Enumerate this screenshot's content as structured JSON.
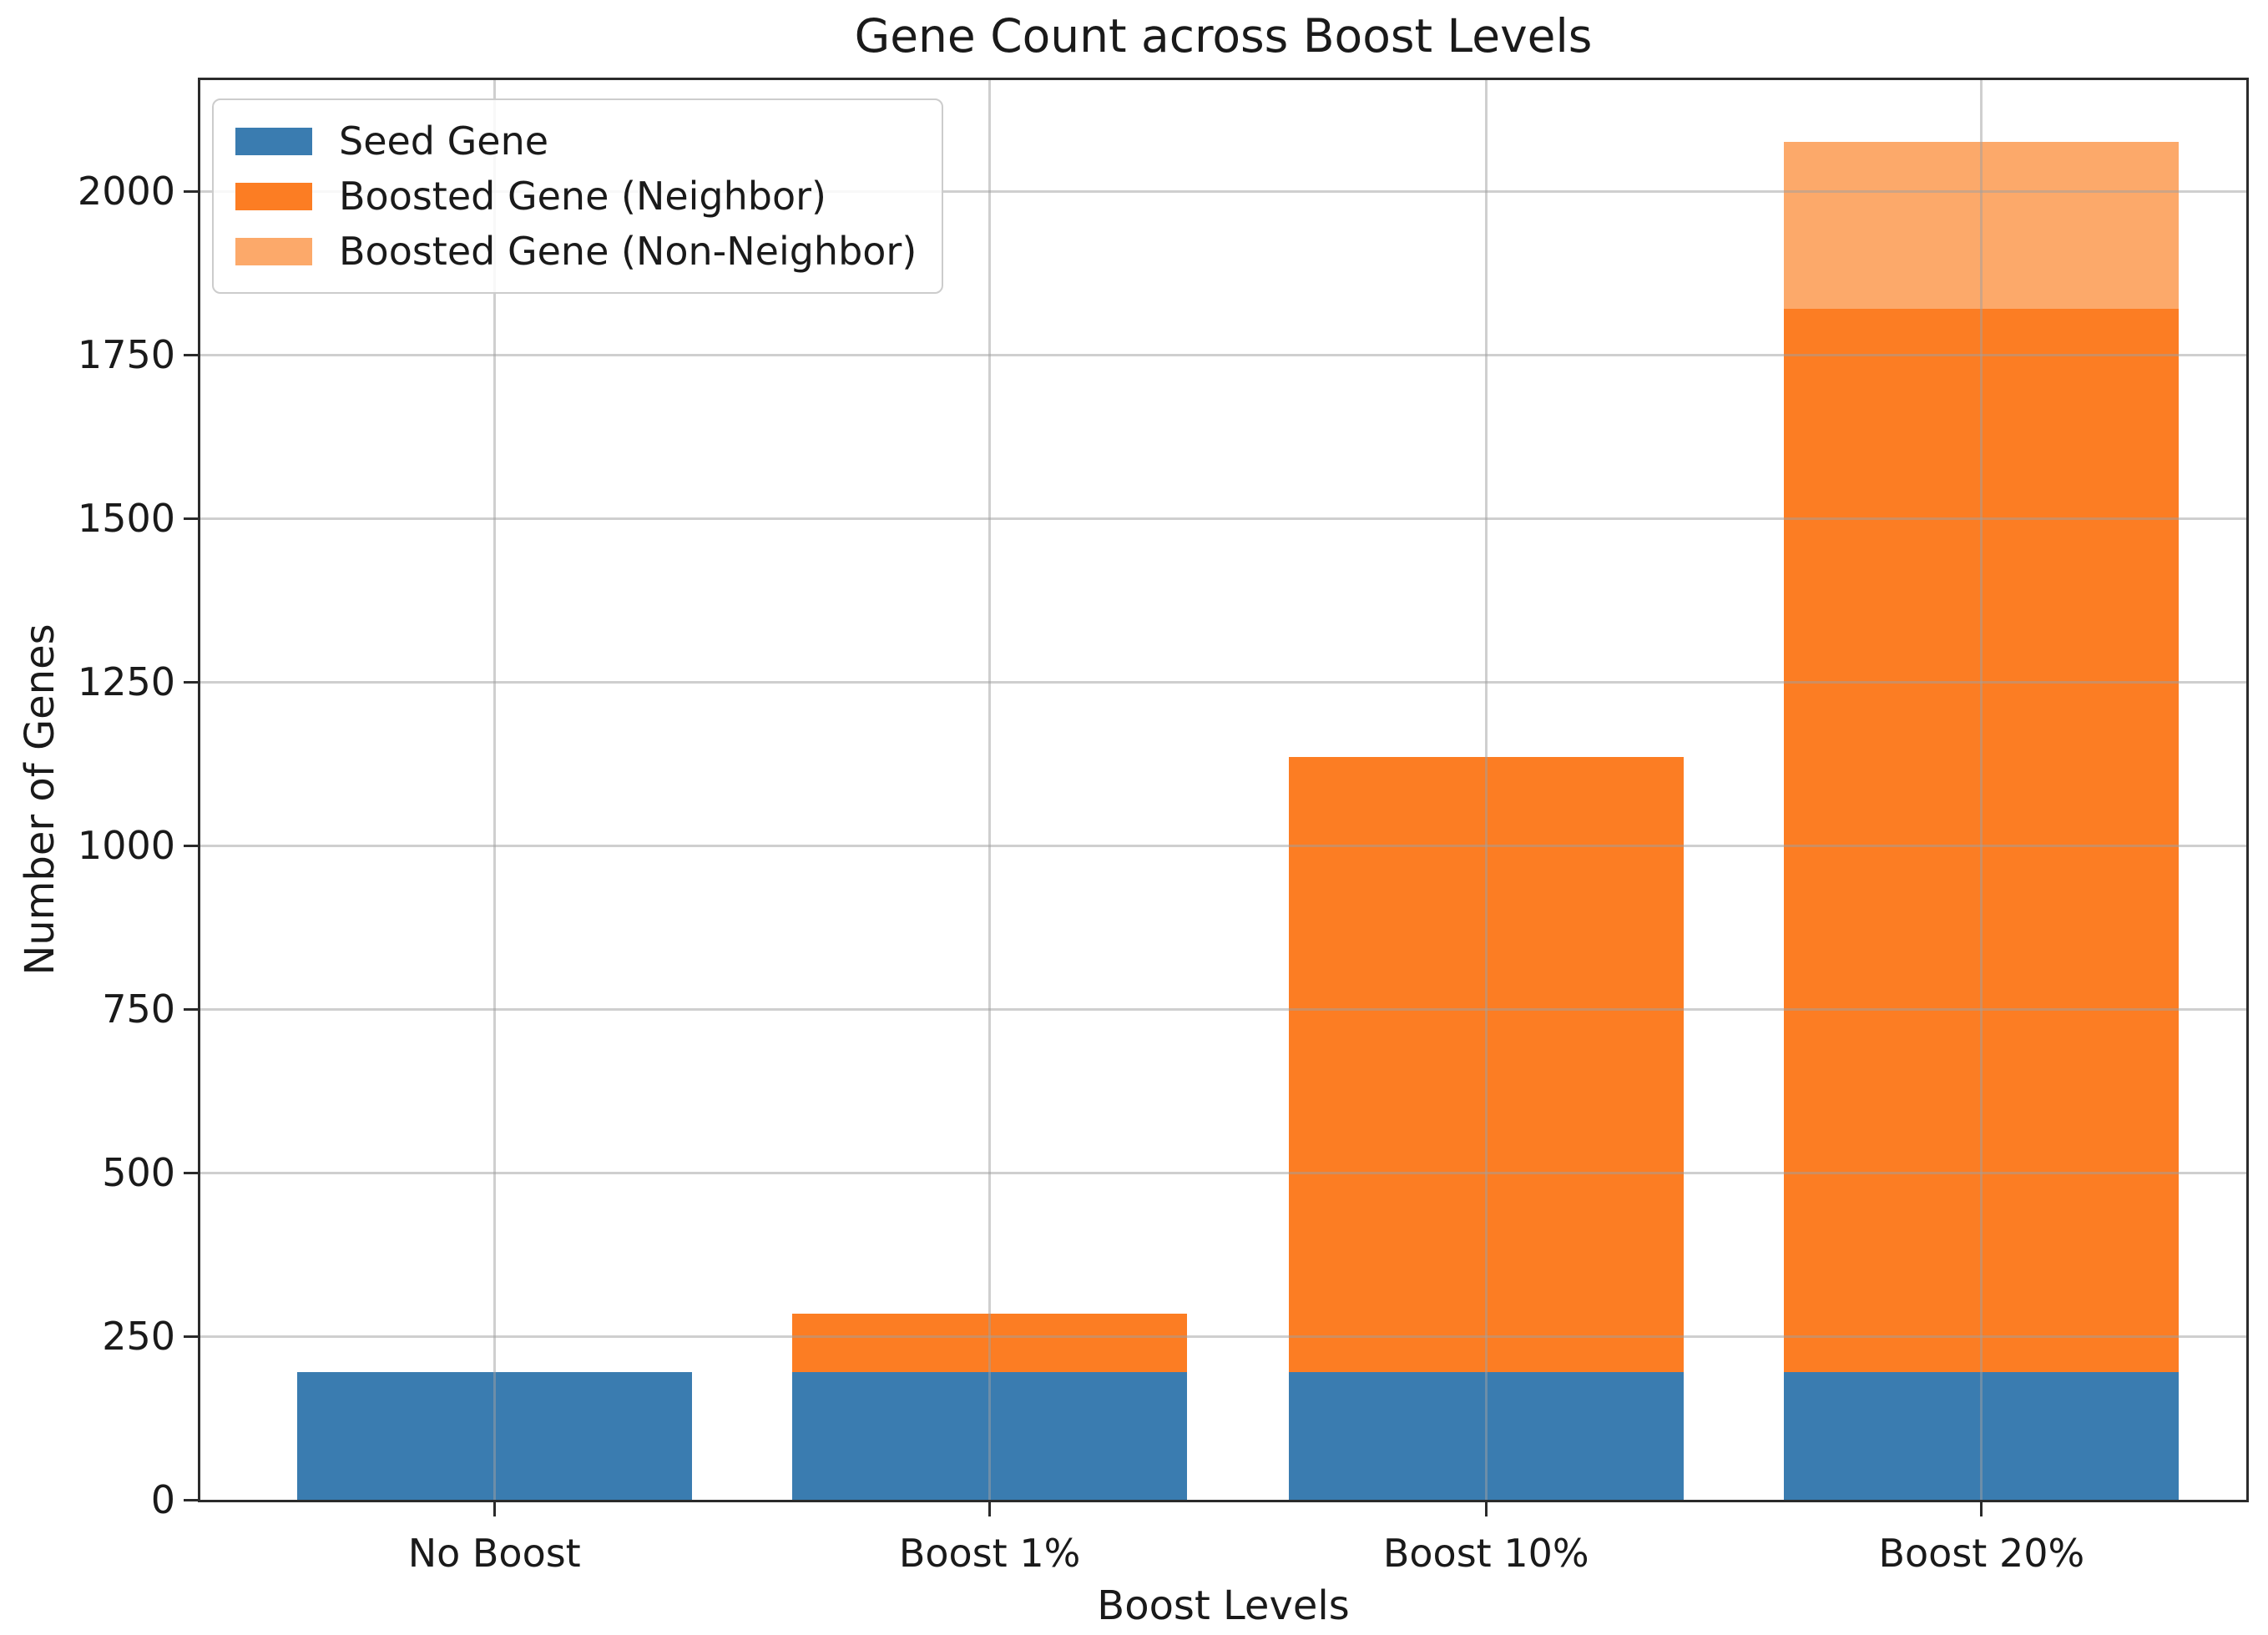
{
  "chart_data": {
    "type": "bar",
    "stacked": true,
    "title": "Gene Count across Boost Levels",
    "xlabel": "Boost Levels",
    "ylabel": "Number of Genes",
    "categories": [
      "No Boost",
      "Boost 1%",
      "Boost 10%",
      "Boost 20%"
    ],
    "series": [
      {
        "name": "Seed Gene",
        "color_key": "seed",
        "values": [
          195,
          195,
          195,
          195
        ]
      },
      {
        "name": "Boosted Gene (Neighbor)",
        "color_key": "neighbor",
        "values": [
          0,
          90,
          940,
          1625
        ]
      },
      {
        "name": "Boosted Gene (Non-Neighbor)",
        "color_key": "non_neighbor",
        "values": [
          0,
          0,
          0,
          255
        ]
      }
    ],
    "stack_totals": [
      195,
      285,
      1135,
      2075
    ],
    "ylim": [
      0,
      2170
    ],
    "yticks": [
      0,
      250,
      500,
      750,
      1000,
      1250,
      1500,
      1750,
      2000
    ],
    "grid": true,
    "legend_position": "upper left"
  },
  "colors": {
    "seed": "#3a7cb0",
    "neighbor": "#fc7d23",
    "non_neighbor": "#fca96a",
    "grid": "#c8c8c8",
    "spine": "#2b2b2b",
    "text": "#1a1a1a",
    "legend_border": "#cccccc"
  }
}
